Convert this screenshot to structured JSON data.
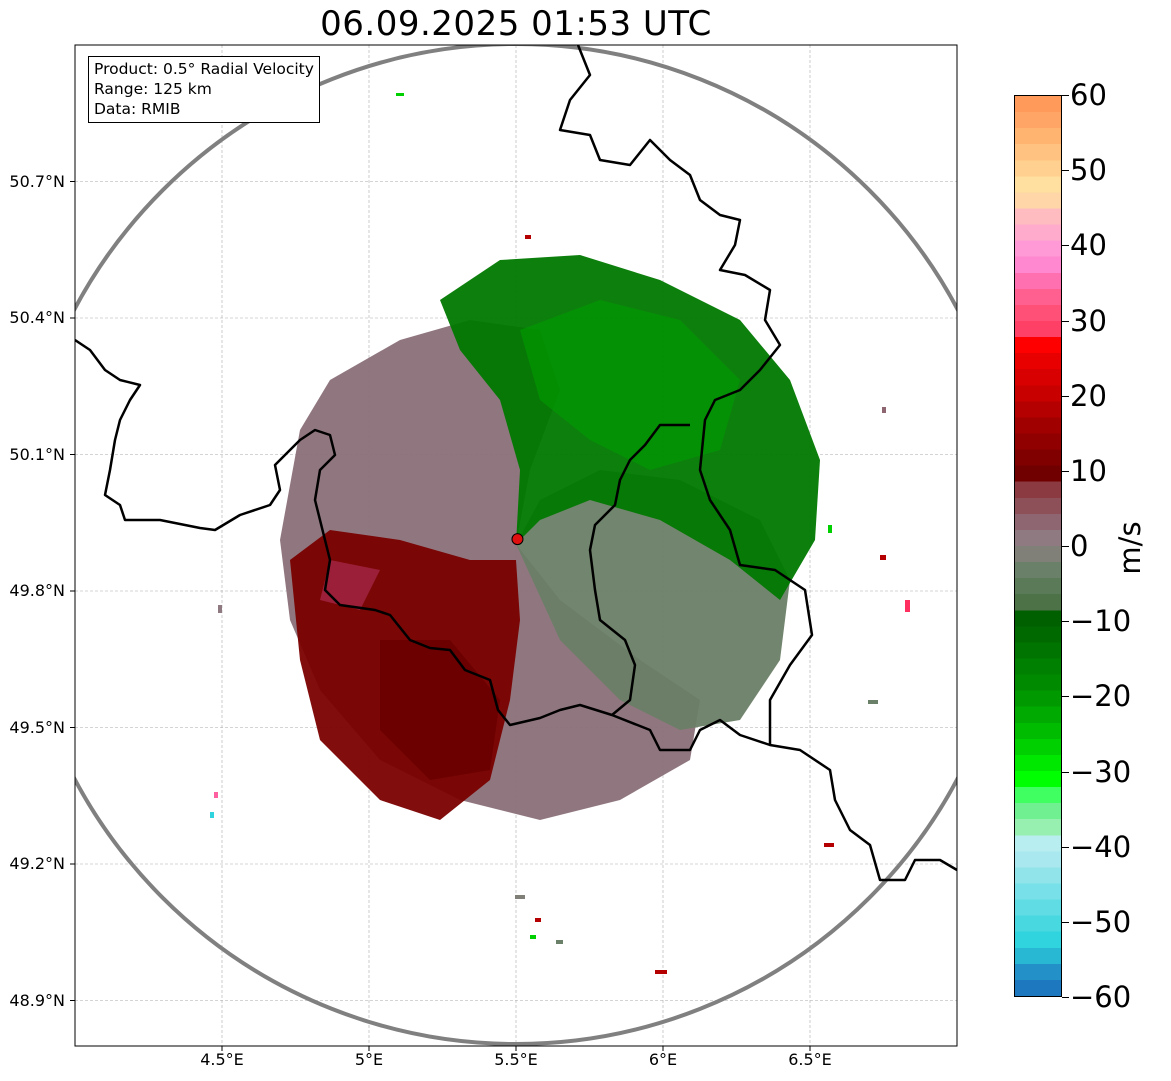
{
  "title": "06.09.2025 01:53 UTC",
  "info": {
    "product": "Product: 0.5° Radial Velocity",
    "range": "Range: 125 km",
    "data": "Data: RMIB"
  },
  "map": {
    "lon_range": [
      4.0,
      7.0
    ],
    "lat_range": [
      48.8,
      51.0
    ],
    "radar_site": {
      "lon": 5.505,
      "lat": 49.914
    },
    "lat_ticks": [
      {
        "value": 50.7,
        "label": "50.7°N"
      },
      {
        "value": 50.4,
        "label": "50.4°N"
      },
      {
        "value": 50.1,
        "label": "50.1°N"
      },
      {
        "value": 49.8,
        "label": "49.8°N"
      },
      {
        "value": 49.5,
        "label": "49.5°N"
      },
      {
        "value": 49.2,
        "label": "49.2°N"
      },
      {
        "value": 48.9,
        "label": "48.9°N"
      }
    ],
    "lon_ticks": [
      {
        "value": 4.5,
        "label": "4.5°E"
      },
      {
        "value": 5.0,
        "label": "5°E"
      },
      {
        "value": 5.5,
        "label": "5.5°E"
      },
      {
        "value": 6.0,
        "label": "6°E"
      },
      {
        "value": 6.5,
        "label": "6.5°E"
      }
    ]
  },
  "colorbar": {
    "unit": "m/s",
    "min": -60,
    "max": 60,
    "ticks": [
      {
        "value": 60,
        "label": "60"
      },
      {
        "value": 50,
        "label": "50"
      },
      {
        "value": 40,
        "label": "40"
      },
      {
        "value": 30,
        "label": "30"
      },
      {
        "value": 20,
        "label": "20"
      },
      {
        "value": 10,
        "label": "10"
      },
      {
        "value": 0,
        "label": "0"
      },
      {
        "value": -10,
        "label": "−10"
      },
      {
        "value": -20,
        "label": "−20"
      },
      {
        "value": -30,
        "label": "−30"
      },
      {
        "value": -40,
        "label": "−40"
      },
      {
        "value": -50,
        "label": "−50"
      },
      {
        "value": -60,
        "label": "−60"
      }
    ],
    "colors_top_to_bottom": [
      "#ff9a5a",
      "#ffa565",
      "#ffb470",
      "#ffc280",
      "#ffd090",
      "#ffe0a0",
      "#ffd6a8",
      "#ffbcc0",
      "#ffaccc",
      "#ff9ad6",
      "#ff88d0",
      "#ff70b0",
      "#ff6090",
      "#ff5078",
      "#ff4066",
      "#ff0000",
      "#e80000",
      "#d80000",
      "#c80000",
      "#b40000",
      "#a00000",
      "#900000",
      "#800000",
      "#700000",
      "#8a3a40",
      "#8e5058",
      "#8e6672",
      "#8e7a80",
      "#808078",
      "#6a8068",
      "#5a7a58",
      "#4e7248",
      "#006000",
      "#006a00",
      "#007400",
      "#008000",
      "#008a00",
      "#009a00",
      "#00aa00",
      "#00bc00",
      "#00d000",
      "#00e800",
      "#00ff00",
      "#40ff60",
      "#70f090",
      "#98f0b0",
      "#b8eef0",
      "#a8e8ee",
      "#90e4ea",
      "#78e0e8",
      "#60dce4",
      "#48d8e0",
      "#30d4de",
      "#28b8d4",
      "#2490c8",
      "#1e78c0"
    ]
  }
}
